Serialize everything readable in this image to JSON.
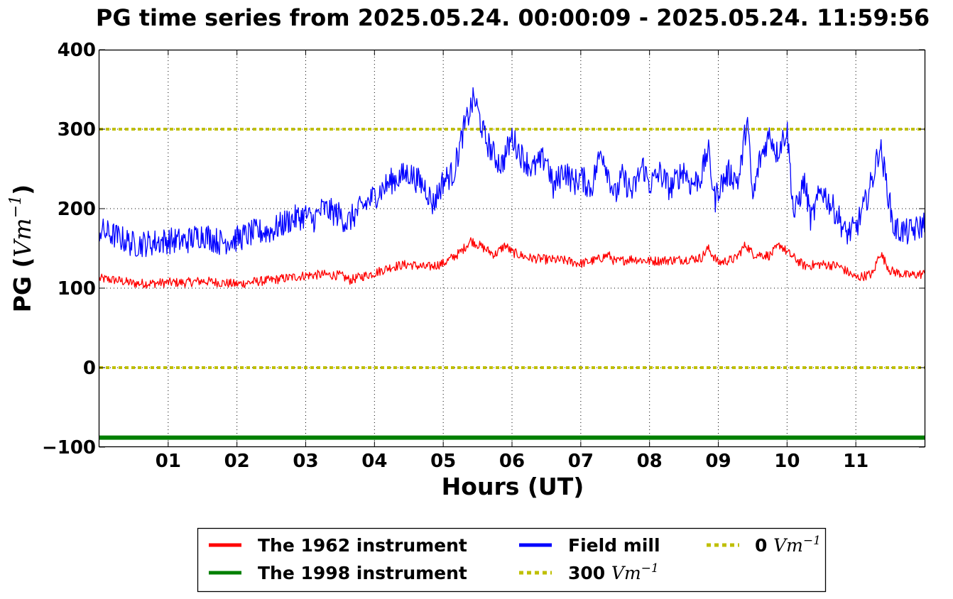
{
  "chart_data": {
    "type": "line",
    "title": "PG time series from 2025.05.24. 00:00:09 - 2025.05.24. 11:59:56",
    "xlabel": "Hours (UT)",
    "ylabel_text": "PG (",
    "ylabel_unit": "Vm",
    "ylabel_exp": "−1",
    "ylabel_close": ")",
    "xlim": [
      0,
      12
    ],
    "ylim": [
      -100,
      400
    ],
    "x_ticks": [
      {
        "value": 1,
        "label": "01"
      },
      {
        "value": 2,
        "label": "02"
      },
      {
        "value": 3,
        "label": "03"
      },
      {
        "value": 4,
        "label": "04"
      },
      {
        "value": 5,
        "label": "05"
      },
      {
        "value": 6,
        "label": "06"
      },
      {
        "value": 7,
        "label": "07"
      },
      {
        "value": 8,
        "label": "08"
      },
      {
        "value": 9,
        "label": "09"
      },
      {
        "value": 10,
        "label": "10"
      },
      {
        "value": 11,
        "label": "11"
      }
    ],
    "y_ticks": [
      {
        "value": -100,
        "label": "−100"
      },
      {
        "value": 0,
        "label": "0"
      },
      {
        "value": 100,
        "label": "100"
      },
      {
        "value": 200,
        "label": "200"
      },
      {
        "value": 300,
        "label": "300"
      },
      {
        "value": 400,
        "label": "400"
      }
    ],
    "grid": true,
    "legend_position": "bottom-outside",
    "series": [
      {
        "name": "The 1962 instrument",
        "color": "#ff0000",
        "x": [
          0,
          0.25,
          0.5,
          0.75,
          1,
          1.25,
          1.5,
          1.75,
          2,
          2.25,
          2.5,
          2.75,
          3,
          3.25,
          3.5,
          3.65,
          3.75,
          4,
          4.25,
          4.5,
          4.75,
          5,
          5.25,
          5.4,
          5.5,
          5.75,
          5.9,
          6,
          6.25,
          6.5,
          6.75,
          7,
          7.25,
          7.4,
          7.5,
          7.75,
          8,
          8.25,
          8.5,
          8.75,
          8.85,
          9,
          9.25,
          9.4,
          9.5,
          9.75,
          9.9,
          10,
          10.25,
          10.5,
          10.75,
          11,
          11.25,
          11.35,
          11.5,
          11.75,
          12
        ],
        "y": [
          112,
          110,
          106,
          106,
          107,
          107,
          109,
          107,
          105,
          108,
          110,
          113,
          116,
          117,
          116,
          110,
          113,
          119,
          127,
          130,
          126,
          131,
          145,
          160,
          155,
          142,
          154,
          145,
          138,
          136,
          135,
          131,
          136,
          142,
          133,
          137,
          134,
          135,
          136,
          138,
          150,
          132,
          137,
          155,
          143,
          141,
          155,
          145,
          128,
          130,
          128,
          113,
          118,
          145,
          122,
          116,
          118
        ]
      },
      {
        "name": "The 1998 instrument",
        "color": "#008000",
        "x": [
          0,
          12
        ],
        "y": [
          -88,
          -88
        ]
      },
      {
        "name": "Field mill",
        "color": "#0000ff",
        "x": [
          0,
          0.25,
          0.5,
          0.75,
          1,
          1.25,
          1.5,
          1.75,
          2,
          2.25,
          2.5,
          2.75,
          3,
          3.1,
          3.25,
          3.5,
          3.6,
          3.75,
          4,
          4.25,
          4.5,
          4.75,
          4.85,
          5,
          5.15,
          5.3,
          5.45,
          5.6,
          5.75,
          5.85,
          6,
          6.15,
          6.3,
          6.5,
          6.6,
          6.75,
          6.9,
          7,
          7.15,
          7.3,
          7.5,
          7.6,
          7.75,
          7.9,
          8,
          8.15,
          8.3,
          8.5,
          8.6,
          8.75,
          8.85,
          8.95,
          9,
          9.15,
          9.3,
          9.42,
          9.5,
          9.6,
          9.75,
          9.85,
          10,
          10.1,
          10.25,
          10.35,
          10.5,
          10.6,
          10.75,
          10.85,
          11,
          11.15,
          11.25,
          11.35,
          11.45,
          11.55,
          11.75,
          11.9,
          12
        ],
        "y": [
          173,
          165,
          155,
          157,
          160,
          159,
          168,
          158,
          162,
          170,
          172,
          185,
          192,
          185,
          200,
          192,
          182,
          196,
          216,
          235,
          245,
          226,
          205,
          235,
          245,
          300,
          340,
          290,
          265,
          255,
          290,
          265,
          250,
          265,
          225,
          250,
          232,
          240,
          225,
          275,
          215,
          240,
          220,
          255,
          230,
          245,
          225,
          250,
          230,
          240,
          275,
          210,
          225,
          245,
          235,
          315,
          210,
          260,
          295,
          270,
          300,
          190,
          235,
          185,
          225,
          210,
          190,
          168,
          175,
          210,
          240,
          280,
          230,
          175,
          170,
          175,
          182
        ]
      }
    ],
    "reference_lines": [
      {
        "name": "300",
        "value": 300,
        "color": "#bfbf00"
      },
      {
        "name": "0",
        "value": 0,
        "color": "#bfbf00"
      }
    ],
    "legend": [
      {
        "label": "The 1962 instrument",
        "unit": "",
        "style": "solid",
        "color": "#ff0000"
      },
      {
        "label": "The 1998 instrument",
        "unit": "",
        "style": "solid",
        "color": "#008000"
      },
      {
        "label": "Field mill",
        "unit": "",
        "style": "solid",
        "color": "#0000ff"
      },
      {
        "label": "300",
        "unit": "Vm",
        "exp": "−1",
        "style": "dotted",
        "color": "#bfbf00"
      },
      {
        "label": "0",
        "unit": "Vm",
        "exp": "−1",
        "style": "dotted",
        "color": "#bfbf00"
      }
    ]
  }
}
